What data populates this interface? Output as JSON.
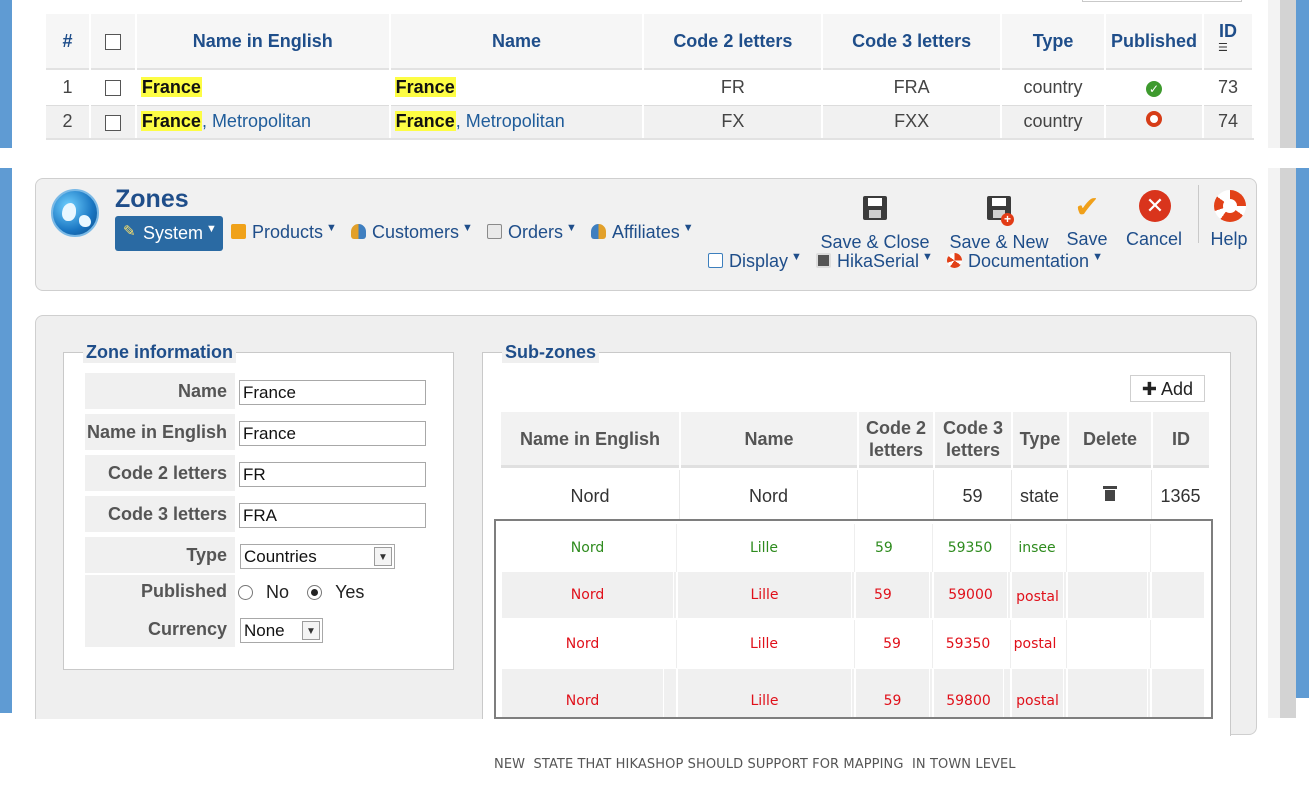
{
  "list_table": {
    "headers": [
      "#",
      "",
      "Name in English",
      "Name",
      "Code 2 letters",
      "Code 3 letters",
      "Type",
      "Published",
      "ID"
    ],
    "rows": [
      {
        "num": "1",
        "name_en_hl": "France",
        "name_en_rest": "",
        "name_hl": "France",
        "name_rest": "",
        "code2": "FR",
        "code3": "FRA",
        "type": "country",
        "published": "yes",
        "id": "73"
      },
      {
        "num": "2",
        "name_en_hl": "France",
        "name_en_rest": ", Metropolitan",
        "name_hl": "France",
        "name_rest": ", Metropolitan",
        "code2": "FX",
        "code3": "FXX",
        "type": "country",
        "published": "no",
        "id": "74"
      }
    ],
    "colors": {
      "highlight": "#fdfd44",
      "link": "#1f5c9a",
      "published_on": "#3e9a2e",
      "published_off": "#d63c17"
    }
  },
  "toolbar": {
    "title": "Zones",
    "menu": [
      {
        "label": "System",
        "icon": "wand-icon",
        "active": true
      },
      {
        "label": "Products",
        "icon": "box-icon"
      },
      {
        "label": "Customers",
        "icon": "users-icon"
      },
      {
        "label": "Orders",
        "icon": "orders-icon"
      },
      {
        "label": "Affiliates",
        "icon": "affiliates-icon"
      },
      {
        "label": "Display",
        "icon": "display-icon"
      },
      {
        "label": "HikaSerial",
        "icon": "serial-icon"
      },
      {
        "label": "Documentation",
        "icon": "lifebuoy-icon"
      }
    ],
    "buttons": [
      {
        "label": "Save & Close",
        "icon": "floppy-icon"
      },
      {
        "label": "Save & New",
        "icon": "floppy-new-icon"
      },
      {
        "label": "Save",
        "icon": "check-icon"
      },
      {
        "label": "Cancel",
        "icon": "cancel-icon"
      },
      {
        "label": "Help",
        "icon": "help-icon"
      }
    ],
    "accent": "#2a6aa3"
  },
  "zone_info": {
    "legend": "Zone information",
    "fields": {
      "name": {
        "label": "Name",
        "value": "France"
      },
      "name_en": {
        "label": "Name in English",
        "value": "France"
      },
      "code2": {
        "label": "Code 2 letters",
        "value": "FR"
      },
      "code3": {
        "label": "Code 3 letters",
        "value": "FRA"
      },
      "type": {
        "label": "Type",
        "value": "Countries"
      },
      "published": {
        "label": "Published",
        "options": [
          "No",
          "Yes"
        ],
        "selected": "Yes"
      },
      "currency": {
        "label": "Currency",
        "value": "None"
      }
    }
  },
  "subzones": {
    "legend": "Sub-zones",
    "add_label": "Add",
    "headers": [
      "Name in English",
      "Name",
      "Code 2 letters",
      "Code 3 letters",
      "Type",
      "Delete",
      "ID"
    ],
    "rows": [
      {
        "name_en": "Nord",
        "name": "Nord",
        "code2": "",
        "code3": "59",
        "type": "state",
        "id": "1365"
      }
    ],
    "proposed_rows": [
      {
        "name_en": "Nord",
        "name": "Lille",
        "code2": "59",
        "code3": "59350",
        "type": "insee",
        "color": "#2e8b1e"
      },
      {
        "name_en": "Nord",
        "name": "Lille",
        "code2": "59",
        "code3": "59000",
        "type": "postal",
        "color": "#e0101a"
      },
      {
        "name_en": "Nord",
        "name": "Lille",
        "code2": "59",
        "code3": "59350",
        "type": "postal",
        "color": "#e0101a"
      },
      {
        "name_en": "Nord",
        "name": "Lille",
        "code2": "59",
        "code3": "59800",
        "type": "postal",
        "color": "#e0101a"
      }
    ]
  },
  "note": "NEW  STATE THAT HIKASHOP SHOULD SUPPORT FOR MAPPING  IN TOWN LEVEL"
}
